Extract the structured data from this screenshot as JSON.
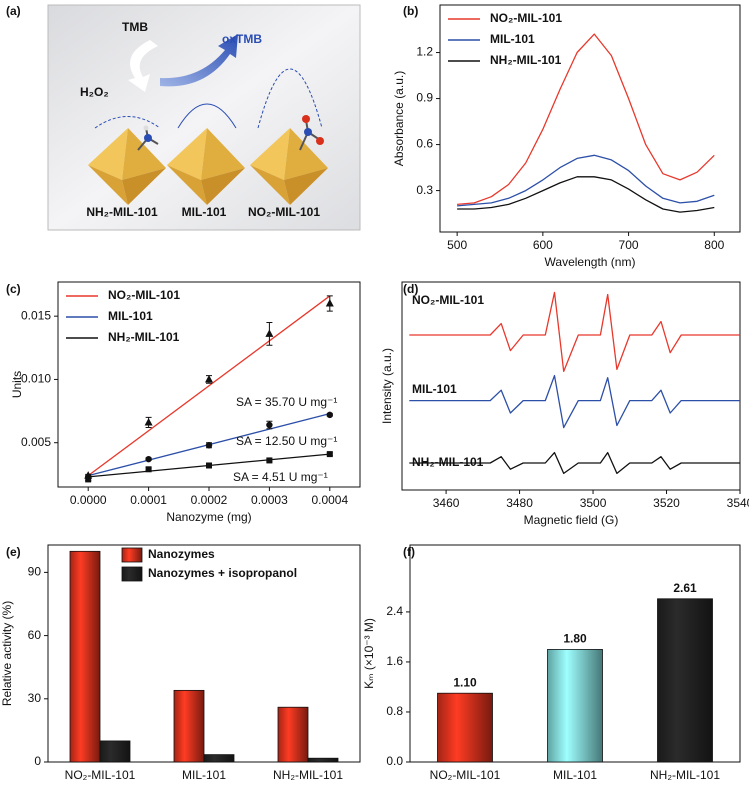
{
  "panel_a": {
    "label": "(a)",
    "tmb": "TMB",
    "oxtmb": "oxTMB",
    "h2o2": "H₂O₂",
    "materials": [
      "NH₂-MIL-101",
      "MIL-101",
      "NO₂-MIL-101"
    ]
  },
  "chart_data": [
    {
      "type": "line",
      "panel_label": "(b)",
      "xlabel": "Wavelength (nm)",
      "ylabel": "Absorbance (a.u.)",
      "x": [
        500,
        520,
        540,
        560,
        580,
        600,
        620,
        640,
        660,
        680,
        700,
        720,
        740,
        760,
        780,
        800
      ],
      "series": [
        {
          "name": "NO₂-MIL-101",
          "color": "#e8382c",
          "values": [
            0.21,
            0.22,
            0.26,
            0.34,
            0.48,
            0.7,
            0.96,
            1.2,
            1.32,
            1.18,
            0.9,
            0.6,
            0.41,
            0.37,
            0.42,
            0.53
          ]
        },
        {
          "name": "MIL-101",
          "color": "#2c4fa8",
          "values": [
            0.2,
            0.21,
            0.22,
            0.25,
            0.3,
            0.37,
            0.45,
            0.51,
            0.53,
            0.5,
            0.43,
            0.33,
            0.25,
            0.22,
            0.23,
            0.27
          ]
        },
        {
          "name": "NH₂-MIL-101",
          "color": "#111111",
          "values": [
            0.18,
            0.18,
            0.19,
            0.21,
            0.25,
            0.3,
            0.35,
            0.39,
            0.39,
            0.37,
            0.31,
            0.24,
            0.18,
            0.16,
            0.17,
            0.19
          ]
        }
      ],
      "xlim": [
        480,
        830
      ],
      "xticks": [
        500,
        600,
        700,
        800
      ],
      "ylim": [
        0.03,
        1.51
      ],
      "yticks": [
        0.3,
        0.6,
        0.9,
        1.2
      ],
      "legend": "upper left"
    },
    {
      "type": "scatter",
      "panel_label": "(c)",
      "xlabel": "Nanozyme (mg)",
      "ylabel": "Units",
      "x": [
        0,
        0.0001,
        0.0002,
        0.0003,
        0.0004
      ],
      "fit_x": [
        0,
        0.0004
      ],
      "series": [
        {
          "name": "NO₂-MIL-101",
          "color": "#e8382c",
          "marker": "triangle",
          "values": [
            0.0024,
            0.0066,
            0.01,
            0.0136,
            0.016
          ],
          "errors": [
            0.0001,
            0.0004,
            0.0003,
            0.0009,
            0.0006
          ],
          "fit_values": [
            0.0024,
            0.0166
          ]
        },
        {
          "name": "MIL-101",
          "color": "#2c4fa8",
          "marker": "circle",
          "values": [
            0.0023,
            0.0037,
            0.0048,
            0.0064,
            0.0072
          ],
          "errors": [
            0.0001,
            0.0001,
            0.0002,
            0.0003,
            0.0001
          ],
          "fit_values": [
            0.0024,
            0.0073
          ]
        },
        {
          "name": "NH₂-MIL-101",
          "color": "#111111",
          "marker": "square",
          "values": [
            0.0021,
            0.0029,
            0.0032,
            0.0036,
            0.0041
          ],
          "errors": [
            0.0001,
            0.0001,
            0.0001,
            0.0001,
            0.0001
          ],
          "fit_values": [
            0.0023,
            0.0041
          ]
        }
      ],
      "annotations": [
        "SA = 35.70 U mg⁻¹",
        "SA = 12.50 U mg⁻¹",
        "SA = 4.51 U mg⁻¹"
      ],
      "xlim": [
        -5e-05,
        0.00045
      ],
      "xticks": [
        {
          "value": 0,
          "label": "0.0000"
        },
        {
          "value": 0.0001,
          "label": "0.0001"
        },
        {
          "value": 0.0002,
          "label": "0.0002"
        },
        {
          "value": 0.0003,
          "label": "0.0003"
        },
        {
          "value": 0.0004,
          "label": "0.0004"
        }
      ],
      "ylim": [
        0.0015,
        0.0177
      ],
      "yticks": [
        {
          "value": 0.005,
          "label": "0.005"
        },
        {
          "value": 0.01,
          "label": "0.010"
        },
        {
          "value": 0.015,
          "label": "0.015"
        }
      ],
      "legend": "upper left"
    },
    {
      "type": "line",
      "panel_label": "(d)",
      "xlabel": "Magnetic field (G)",
      "ylabel": "Intensity (a.u.)",
      "x": [
        3450,
        3472,
        3475,
        3477.5,
        3481,
        3487,
        3489.5,
        3492,
        3496,
        3502,
        3504,
        3506.5,
        3510,
        3516,
        3518.5,
        3521,
        3524,
        3540
      ],
      "series": [
        {
          "name": "NO₂-MIL-101",
          "color": "#e8382c",
          "values": [
            7.45,
            7.45,
            8.0,
            6.7,
            7.45,
            7.45,
            9.5,
            5.7,
            7.45,
            7.45,
            9.4,
            5.8,
            7.45,
            7.45,
            8.1,
            6.6,
            7.45,
            7.45
          ]
        },
        {
          "name": "MIL-101",
          "color": "#2c4fa8",
          "values": [
            4.3,
            4.3,
            4.8,
            3.7,
            4.3,
            4.3,
            5.5,
            3.0,
            4.3,
            4.3,
            5.4,
            3.1,
            4.3,
            4.3,
            4.8,
            3.7,
            4.3,
            4.3
          ]
        },
        {
          "name": "NH₂-MIL-101",
          "color": "#111111",
          "values": [
            1.3,
            1.3,
            1.6,
            1.0,
            1.3,
            1.3,
            1.8,
            0.8,
            1.3,
            1.3,
            1.8,
            0.8,
            1.3,
            1.3,
            1.6,
            1.0,
            1.3,
            1.3
          ]
        }
      ],
      "xlim": [
        3448,
        3540
      ],
      "xticks": [
        3460,
        3480,
        3500,
        3520,
        3540
      ],
      "ylim": [
        0,
        10
      ],
      "yticks": [],
      "legend": "inline"
    },
    {
      "type": "bar",
      "panel_label": "(e)",
      "ylabel": "Relative activity (%)",
      "categories": [
        "NO₂-MIL-101",
        "MIL-101",
        "NH₂-MIL-101"
      ],
      "series": [
        {
          "name": "Nanozymes",
          "color": "#d9301c",
          "values": [
            100,
            34,
            26
          ]
        },
        {
          "name": "Nanozymes + isopropanol",
          "color": "#222222",
          "values": [
            10,
            3.5,
            1.8
          ]
        }
      ],
      "ylim": [
        0,
        103
      ],
      "yticks": [
        0,
        30,
        60,
        90
      ],
      "legend": "upper right"
    },
    {
      "type": "bar",
      "panel_label": "(f)",
      "ylabel": "Kₘ (×10⁻³ M)",
      "categories": [
        "NO₂-MIL-101",
        "MIL-101",
        "NH₂-MIL-101"
      ],
      "values": [
        1.1,
        1.8,
        2.61
      ],
      "value_labels": [
        "1.10",
        "1.80",
        "2.61"
      ],
      "colors": [
        "#d9301c",
        "#7fd8d8",
        "#222222"
      ],
      "ylim": [
        0,
        3.47
      ],
      "yticks": [
        {
          "value": 0,
          "label": "0.0"
        },
        0.8,
        1.6,
        2.4
      ]
    }
  ]
}
